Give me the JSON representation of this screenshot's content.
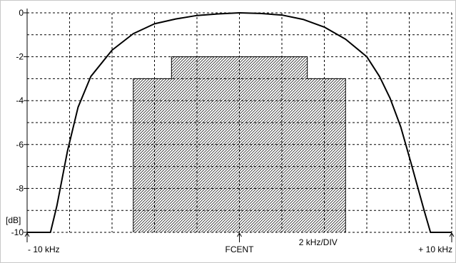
{
  "chart_data": {
    "type": "line",
    "title": "",
    "xlabel": "",
    "ylabel": "[dB]",
    "x_unit": "kHz",
    "xlim": [
      -10,
      10
    ],
    "ylim": [
      -10,
      0
    ],
    "grid": true,
    "y_ticks": [
      {
        "value": 0,
        "label": "0"
      },
      {
        "value": -2,
        "label": "-2"
      },
      {
        "value": -4,
        "label": "-4"
      },
      {
        "value": -6,
        "label": "-6"
      },
      {
        "value": -8,
        "label": "-8"
      },
      {
        "value": -10,
        "label": "-10"
      }
    ],
    "x_ticks": [
      {
        "value": -10,
        "label": "- 10 kHz"
      },
      {
        "value": 0,
        "label": "FCENT"
      },
      {
        "value": 10,
        "label": "+ 10 kHz"
      }
    ],
    "scale_label": "2 kHz/DIV",
    "series": [
      {
        "type": "response-curve",
        "color": "#000000",
        "points": [
          [
            -10,
            -10
          ],
          [
            -8.9,
            -10
          ],
          [
            -8.6,
            -8.8
          ],
          [
            -8.1,
            -6.3
          ],
          [
            -7.6,
            -4.3
          ],
          [
            -7.0,
            -2.9
          ],
          [
            -6.0,
            -1.7
          ],
          [
            -5.0,
            -0.95
          ],
          [
            -4.0,
            -0.5
          ],
          [
            -3.0,
            -0.28
          ],
          [
            -2.0,
            -0.12
          ],
          [
            -1.0,
            -0.05
          ],
          [
            0.0,
            0.0
          ],
          [
            1.0,
            -0.03
          ],
          [
            2.0,
            -0.1
          ],
          [
            3.0,
            -0.3
          ],
          [
            4.0,
            -0.65
          ],
          [
            5.0,
            -1.2
          ],
          [
            6.0,
            -2.0
          ],
          [
            6.6,
            -2.9
          ],
          [
            7.1,
            -3.9
          ],
          [
            7.6,
            -5.2
          ],
          [
            8.1,
            -6.9
          ],
          [
            8.7,
            -9.0
          ],
          [
            9.0,
            -10
          ],
          [
            10,
            -10
          ]
        ]
      },
      {
        "type": "spec-mask",
        "color": "#000000",
        "points": [
          [
            -5.0,
            -10
          ],
          [
            -5.0,
            -3.0
          ],
          [
            -3.2,
            -3.0
          ],
          [
            -3.2,
            -2.0
          ],
          [
            3.2,
            -2.0
          ],
          [
            3.2,
            -3.0
          ],
          [
            5.0,
            -3.0
          ],
          [
            5.0,
            -10
          ]
        ]
      }
    ]
  }
}
